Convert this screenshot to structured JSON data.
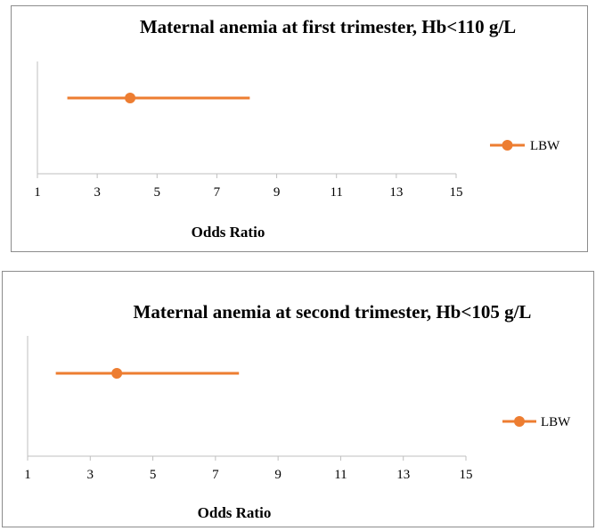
{
  "chart_data": [
    {
      "type": "scatter",
      "title": "Maternal anemia at first trimester, Hb<110 g/L",
      "xlabel": "Odds Ratio",
      "ylabel": "",
      "xlim": [
        1,
        15
      ],
      "xticks": [
        1,
        3,
        5,
        7,
        9,
        11,
        13,
        15
      ],
      "grid": false,
      "legend": "right",
      "series": [
        {
          "name": "LBW",
          "color": "#ED7D31",
          "point": 4.1,
          "ci": [
            2.0,
            8.1
          ]
        }
      ]
    },
    {
      "type": "scatter",
      "title": "Maternal anemia at second trimester, Hb<105 g/L",
      "xlabel": "Odds Ratio",
      "ylabel": "",
      "xlim": [
        1,
        15
      ],
      "xticks": [
        1,
        3,
        5,
        7,
        9,
        11,
        13,
        15
      ],
      "grid": false,
      "legend": "right",
      "series": [
        {
          "name": "LBW",
          "color": "#ED7D31",
          "point": 3.85,
          "ci": [
            1.9,
            7.75
          ]
        }
      ]
    }
  ]
}
